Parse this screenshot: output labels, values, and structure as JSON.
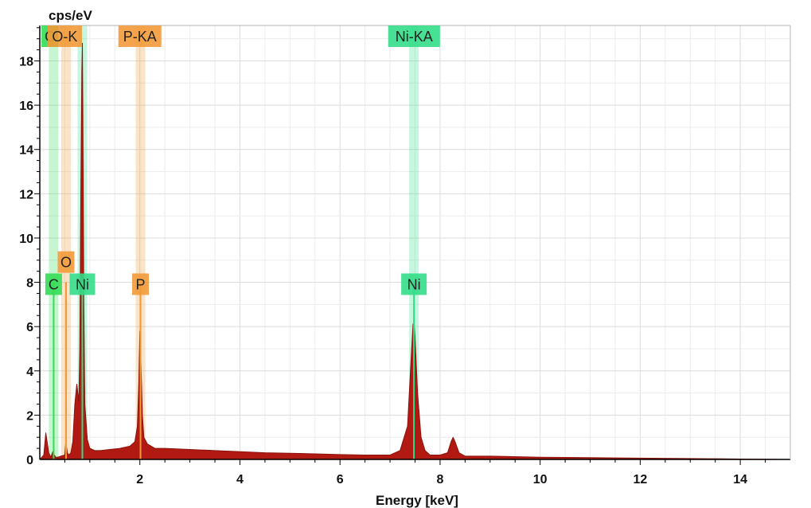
{
  "chart_data": {
    "type": "line",
    "title": "",
    "ylabel": "cps/eV",
    "xlabel": "Energy [keV]",
    "xlim": [
      0,
      15
    ],
    "ylim": [
      0,
      19.6
    ],
    "x_ticks": [
      2,
      4,
      6,
      8,
      10,
      12,
      14
    ],
    "y_ticks": [
      0,
      2,
      4,
      6,
      8,
      10,
      12,
      14,
      16,
      18
    ],
    "grid": true,
    "spectrum_color": "#b01a12",
    "series": [
      {
        "x": [
          0.0,
          0.08,
          0.12,
          0.18,
          0.22,
          0.26,
          0.29,
          0.32,
          0.36,
          0.42,
          0.5,
          0.52,
          0.55,
          0.58,
          0.62,
          0.66,
          0.7,
          0.74,
          0.76,
          0.78,
          0.8,
          0.82,
          0.84,
          0.851,
          0.86,
          0.88,
          0.9,
          0.95,
          1.0,
          1.1,
          1.2,
          1.4,
          1.6,
          1.8,
          1.9,
          1.95,
          1.98,
          2.0,
          2.02,
          2.05,
          2.08,
          2.15,
          2.3,
          2.5,
          3.0,
          3.5,
          4.0,
          4.5,
          5.0,
          5.5,
          6.0,
          6.5,
          7.0,
          7.2,
          7.35,
          7.42,
          7.46,
          7.478,
          7.5,
          7.55,
          7.62,
          7.7,
          7.8,
          8.0,
          8.15,
          8.22,
          8.26,
          8.3,
          8.38,
          8.5,
          9.0,
          10.0,
          11.0,
          12.0,
          13.0,
          13.5,
          14.0,
          14.5,
          15.0
        ],
        "y": [
          0.0,
          0.2,
          1.2,
          0.3,
          0.1,
          0.35,
          0.2,
          0.1,
          0.1,
          0.15,
          0.2,
          0.8,
          0.3,
          0.2,
          0.3,
          0.8,
          2.5,
          3.4,
          3.0,
          2.6,
          5.0,
          12.0,
          17.5,
          18.8,
          16.0,
          7.0,
          2.5,
          0.9,
          0.5,
          0.4,
          0.4,
          0.45,
          0.5,
          0.6,
          0.8,
          1.5,
          3.5,
          5.8,
          4.5,
          2.0,
          1.0,
          0.7,
          0.5,
          0.5,
          0.45,
          0.4,
          0.35,
          0.3,
          0.28,
          0.25,
          0.22,
          0.2,
          0.2,
          0.4,
          1.5,
          4.5,
          6.1,
          6.2,
          5.5,
          3.0,
          1.0,
          0.4,
          0.2,
          0.2,
          0.3,
          0.8,
          1.0,
          0.8,
          0.3,
          0.15,
          0.15,
          0.1,
          0.08,
          0.06,
          0.04,
          0.03,
          0.02,
          0.01,
          0.0
        ]
      }
    ],
    "element_lines": [
      {
        "element": "C",
        "energy": 0.277,
        "color": "#33dd55",
        "kind": "K"
      },
      {
        "element": "O",
        "energy": 0.525,
        "color": "#f29a3a",
        "kind": "K"
      },
      {
        "element": "Ni",
        "energy": 0.851,
        "color": "#33dd88",
        "kind": "L"
      },
      {
        "element": "P",
        "energy": 2.013,
        "color": "#f29a3a",
        "kind": "K"
      },
      {
        "element": "Ni",
        "energy": 7.478,
        "color": "#33dd88",
        "kind": "K"
      }
    ],
    "annotations": [
      {
        "id": "c-k-top",
        "text": "C",
        "energy": 0.2,
        "y": 19.6,
        "color": "#33dd55"
      },
      {
        "id": "o-k-top",
        "text": "O-K",
        "energy": 0.5,
        "y": 19.6,
        "color": "#f29a3a"
      },
      {
        "id": "p-ka-top",
        "text": "P-KA",
        "energy": 2.0,
        "y": 19.6,
        "color": "#f29a3a"
      },
      {
        "id": "ni-ka-top",
        "text": "Ni-KA",
        "energy": 7.48,
        "y": 19.6,
        "color": "#33dd88"
      },
      {
        "id": "o-mid",
        "text": "O",
        "energy": 0.525,
        "y": 9.4,
        "color": "#f29a3a"
      },
      {
        "id": "c-mid",
        "text": "C",
        "energy": 0.277,
        "y": 8.4,
        "color": "#33dd55"
      },
      {
        "id": "ni-l-mid",
        "text": "Ni",
        "energy": 0.851,
        "y": 8.4,
        "color": "#33dd88"
      },
      {
        "id": "p-mid",
        "text": "P",
        "energy": 2.013,
        "y": 8.4,
        "color": "#f29a3a"
      },
      {
        "id": "ni-k-mid",
        "text": "Ni",
        "energy": 7.478,
        "y": 8.4,
        "color": "#33dd88"
      }
    ]
  }
}
